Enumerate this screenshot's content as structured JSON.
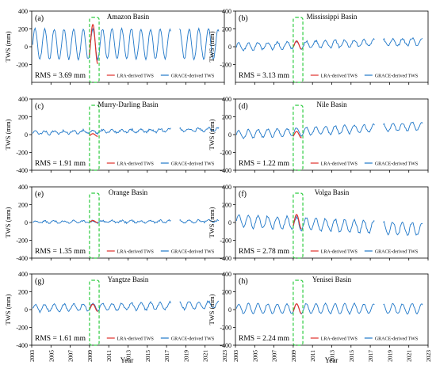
{
  "figure": {
    "ylabel": "TWS (mm)",
    "xlabel": "Year",
    "xticks": [
      "2003",
      "2005",
      "2007",
      "2009",
      "2011",
      "2013",
      "2015",
      "2017",
      "2019",
      "2021",
      "2023"
    ],
    "yticks": [
      "400",
      "200",
      "0",
      "-200",
      "-400"
    ],
    "yticks_top": [
      "400",
      "200",
      "0",
      "-200"
    ],
    "legend": {
      "lra": "LRA-derived TWS",
      "grace": "GRACE-derived TWS"
    },
    "colors": {
      "grace": "#1f77c8",
      "lra": "#e0302a",
      "box": "#2ecc40",
      "axis": "#000000"
    }
  },
  "chart_data": [
    {
      "type": "line",
      "panel_label": "(a)",
      "title": "Amazon Basin",
      "rms": "RMS = 3.69 mm",
      "xlim": [
        2003,
        2023
      ],
      "ylim": [
        -400,
        400
      ],
      "grid": false,
      "legend_position": "bottom",
      "highlight_window": [
        2009.0,
        2010.0
      ],
      "series": [
        {
          "name": "GRACE-derived TWS",
          "mean": 30,
          "amplitude": 170,
          "trend": 0,
          "noise": 10
        },
        {
          "name": "LRA-derived TWS",
          "x_range": [
            2009.0,
            2009.9
          ],
          "mean": 30,
          "amplitude": 220
        }
      ]
    },
    {
      "type": "line",
      "panel_label": "(b)",
      "title": "Mississippi Basin",
      "rms": "RMS = 3.13 mm",
      "xlim": [
        2003,
        2023
      ],
      "ylim": [
        -400,
        400
      ],
      "grid": false,
      "legend_position": "bottom",
      "highlight_window": [
        2009.0,
        2010.0
      ],
      "series": [
        {
          "name": "GRACE-derived TWS",
          "mean": 0,
          "amplitude": 40,
          "trend": 3,
          "noise": 12
        },
        {
          "name": "LRA-derived TWS",
          "x_range": [
            2009.0,
            2009.9
          ],
          "mean": 20,
          "amplitude": 45
        }
      ]
    },
    {
      "type": "line",
      "panel_label": "(c)",
      "title": "Murry-Darling Basin",
      "rms": "RMS = 1.91 mm",
      "xlim": [
        2003,
        2023
      ],
      "ylim": [
        -400,
        400
      ],
      "grid": false,
      "legend_position": "bottom",
      "highlight_window": [
        2009.0,
        2010.0
      ],
      "series": [
        {
          "name": "GRACE-derived TWS",
          "mean": 20,
          "amplitude": 18,
          "trend": 2,
          "noise": 12
        },
        {
          "name": "LRA-derived TWS",
          "x_range": [
            2009.0,
            2009.9
          ],
          "mean": -5,
          "amplitude": 15
        }
      ]
    },
    {
      "type": "line",
      "panel_label": "(d)",
      "title": "Nile Basin",
      "rms": "RMS = 1.22 mm",
      "xlim": [
        2003,
        2023
      ],
      "ylim": [
        -400,
        400
      ],
      "grid": false,
      "legend_position": "bottom",
      "highlight_window": [
        2009.0,
        2010.0
      ],
      "series": [
        {
          "name": "GRACE-derived TWS",
          "mean": 0,
          "amplitude": 45,
          "trend": 5,
          "noise": 10
        },
        {
          "name": "LRA-derived TWS",
          "x_range": [
            2009.0,
            2009.9
          ],
          "mean": 0,
          "amplitude": 35
        }
      ]
    },
    {
      "type": "line",
      "panel_label": "(e)",
      "title": "Orange Basin",
      "rms": "RMS = 1.35 mm",
      "xlim": [
        2003,
        2023
      ],
      "ylim": [
        -400,
        400
      ],
      "grid": false,
      "legend_position": "bottom",
      "highlight_window": [
        2009.0,
        2010.0
      ],
      "series": [
        {
          "name": "GRACE-derived TWS",
          "mean": 5,
          "amplitude": 12,
          "trend": 0.5,
          "noise": 10
        },
        {
          "name": "LRA-derived TWS",
          "x_range": [
            2009.0,
            2009.9
          ],
          "mean": 10,
          "amplitude": 12
        }
      ]
    },
    {
      "type": "line",
      "panel_label": "(f)",
      "title": "Volga Basin",
      "rms": "RMS = 2.78 mm",
      "xlim": [
        2003,
        2023
      ],
      "ylim": [
        -400,
        400
      ],
      "grid": false,
      "legend_position": "bottom",
      "highlight_window": [
        2009.0,
        2010.0
      ],
      "series": [
        {
          "name": "GRACE-derived TWS",
          "mean": 20,
          "amplitude": 70,
          "trend": -5,
          "noise": 14
        },
        {
          "name": "LRA-derived TWS",
          "x_range": [
            2009.0,
            2009.9
          ],
          "mean": 10,
          "amplitude": 80
        }
      ]
    },
    {
      "type": "line",
      "panel_label": "(g)",
      "title": "Yangtze Basin",
      "rms": "RMS = 1.61 mm",
      "xlim": [
        2003,
        2023
      ],
      "ylim": [
        -400,
        400
      ],
      "grid": false,
      "legend_position": "bottom",
      "highlight_window": [
        2009.0,
        2010.0
      ],
      "series": [
        {
          "name": "GRACE-derived TWS",
          "mean": 15,
          "amplitude": 40,
          "trend": 2,
          "noise": 12
        },
        {
          "name": "LRA-derived TWS",
          "x_range": [
            2009.0,
            2009.9
          ],
          "mean": 20,
          "amplitude": 40
        }
      ]
    },
    {
      "type": "line",
      "panel_label": "(h)",
      "title": "Yenisei Basin",
      "rms": "RMS = 2.24 mm",
      "xlim": [
        2003,
        2023
      ],
      "ylim": [
        -400,
        400
      ],
      "grid": false,
      "legend_position": "bottom",
      "highlight_window": [
        2009.0,
        2010.0
      ],
      "series": [
        {
          "name": "GRACE-derived TWS",
          "mean": 10,
          "amplitude": 55,
          "trend": 0,
          "noise": 8
        },
        {
          "name": "LRA-derived TWS",
          "x_range": [
            2009.0,
            2009.9
          ],
          "mean": 10,
          "amplitude": 55
        }
      ]
    }
  ]
}
